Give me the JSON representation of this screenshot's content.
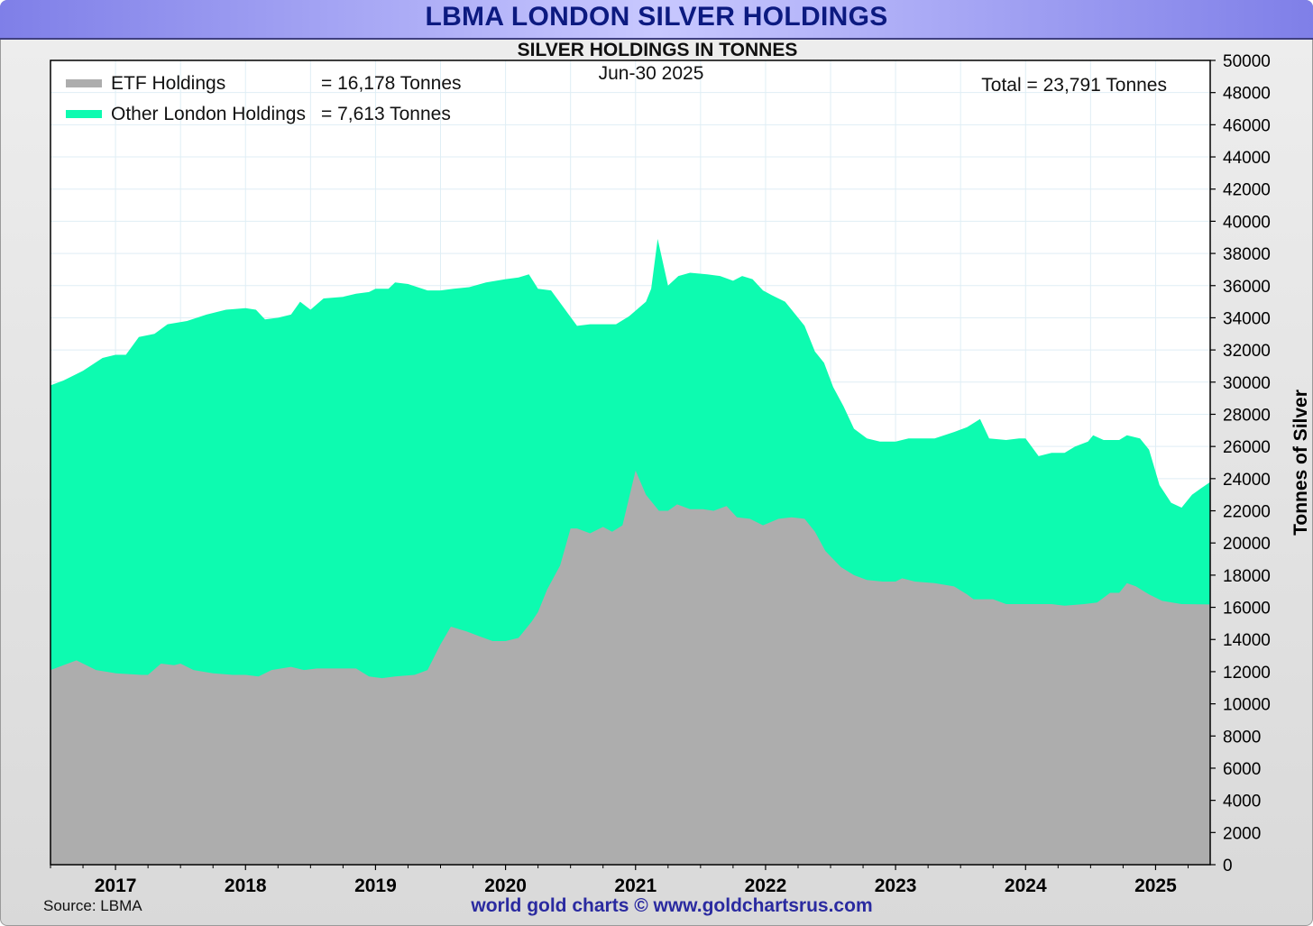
{
  "title": "LBMA LONDON SILVER HOLDINGS",
  "subtitle": "SILVER HOLDINGS IN TONNES",
  "date_label": "Jun-30  2025",
  "legend": {
    "etf_label": "ETF Holdings",
    "etf_value": "= 16,178 Tonnes",
    "other_label": "Other London Holdings",
    "other_value": "= 7,613 Tonnes",
    "total": "Total = 23,791 Tonnes"
  },
  "source": "Source: LBMA",
  "credit": "world gold charts © www.goldchartsrus.com",
  "colors": {
    "etf": "#adadad",
    "other": "#0dfbb0",
    "title": "#0c1a80",
    "credit": "#2a2aa0"
  },
  "chart_data": {
    "type": "area",
    "stacked": true,
    "title": "SILVER HOLDINGS IN TONNES",
    "ylabel": "Tonnes of Silver",
    "xlabel": "",
    "xlim": [
      2016.5,
      2025.42
    ],
    "ylim": [
      0,
      50000
    ],
    "y_tick_step": 2000,
    "x_ticks": [
      2017,
      2018,
      2019,
      2020,
      2021,
      2022,
      2023,
      2024,
      2025
    ],
    "grid": true,
    "series": [
      {
        "name": "ETF Holdings",
        "points": [
          [
            2016.5,
            12100
          ],
          [
            2016.6,
            12400
          ],
          [
            2016.7,
            12700
          ],
          [
            2016.85,
            12100
          ],
          [
            2017.0,
            11900
          ],
          [
            2017.2,
            11800
          ],
          [
            2017.25,
            11800
          ],
          [
            2017.35,
            12500
          ],
          [
            2017.45,
            12400
          ],
          [
            2017.5,
            12500
          ],
          [
            2017.6,
            12100
          ],
          [
            2017.75,
            11900
          ],
          [
            2017.9,
            11800
          ],
          [
            2018.0,
            11800
          ],
          [
            2018.1,
            11700
          ],
          [
            2018.2,
            12100
          ],
          [
            2018.35,
            12300
          ],
          [
            2018.45,
            12100
          ],
          [
            2018.55,
            12200
          ],
          [
            2018.7,
            12200
          ],
          [
            2018.85,
            12200
          ],
          [
            2018.95,
            11700
          ],
          [
            2019.05,
            11600
          ],
          [
            2019.15,
            11700
          ],
          [
            2019.3,
            11800
          ],
          [
            2019.4,
            12100
          ],
          [
            2019.5,
            13700
          ],
          [
            2019.58,
            14800
          ],
          [
            2019.7,
            14500
          ],
          [
            2019.8,
            14200
          ],
          [
            2019.9,
            13900
          ],
          [
            2020.0,
            13900
          ],
          [
            2020.1,
            14100
          ],
          [
            2020.2,
            15100
          ],
          [
            2020.25,
            15700
          ],
          [
            2020.32,
            17100
          ],
          [
            2020.42,
            18600
          ],
          [
            2020.5,
            20900
          ],
          [
            2020.55,
            20900
          ],
          [
            2020.65,
            20600
          ],
          [
            2020.75,
            21000
          ],
          [
            2020.82,
            20700
          ],
          [
            2020.9,
            21100
          ],
          [
            2021.0,
            24500
          ],
          [
            2021.08,
            23000
          ],
          [
            2021.18,
            22000
          ],
          [
            2021.25,
            22000
          ],
          [
            2021.32,
            22400
          ],
          [
            2021.42,
            22100
          ],
          [
            2021.52,
            22100
          ],
          [
            2021.6,
            22000
          ],
          [
            2021.7,
            22300
          ],
          [
            2021.78,
            21600
          ],
          [
            2021.88,
            21500
          ],
          [
            2021.98,
            21100
          ],
          [
            2022.1,
            21500
          ],
          [
            2022.2,
            21600
          ],
          [
            2022.3,
            21500
          ],
          [
            2022.38,
            20700
          ],
          [
            2022.46,
            19500
          ],
          [
            2022.58,
            18500
          ],
          [
            2022.68,
            18000
          ],
          [
            2022.78,
            17700
          ],
          [
            2022.9,
            17600
          ],
          [
            2023.0,
            17600
          ],
          [
            2023.05,
            17800
          ],
          [
            2023.15,
            17600
          ],
          [
            2023.3,
            17500
          ],
          [
            2023.45,
            17300
          ],
          [
            2023.55,
            16800
          ],
          [
            2023.6,
            16500
          ],
          [
            2023.75,
            16500
          ],
          [
            2023.85,
            16200
          ],
          [
            2024.0,
            16200
          ],
          [
            2024.2,
            16200
          ],
          [
            2024.3,
            16100
          ],
          [
            2024.45,
            16200
          ],
          [
            2024.55,
            16300
          ],
          [
            2024.65,
            16900
          ],
          [
            2024.72,
            16900
          ],
          [
            2024.78,
            17500
          ],
          [
            2024.85,
            17300
          ],
          [
            2024.95,
            16800
          ],
          [
            2025.05,
            16400
          ],
          [
            2025.2,
            16200
          ],
          [
            2025.42,
            16178
          ]
        ]
      },
      {
        "name": "Other London Holdings",
        "total_points": [
          [
            2016.5,
            29800
          ],
          [
            2016.6,
            30100
          ],
          [
            2016.75,
            30700
          ],
          [
            2016.9,
            31500
          ],
          [
            2017.0,
            31700
          ],
          [
            2017.08,
            31700
          ],
          [
            2017.18,
            32800
          ],
          [
            2017.3,
            33000
          ],
          [
            2017.4,
            33600
          ],
          [
            2017.55,
            33800
          ],
          [
            2017.7,
            34200
          ],
          [
            2017.85,
            34500
          ],
          [
            2018.0,
            34600
          ],
          [
            2018.08,
            34500
          ],
          [
            2018.15,
            33900
          ],
          [
            2018.25,
            34000
          ],
          [
            2018.35,
            34200
          ],
          [
            2018.42,
            35000
          ],
          [
            2018.5,
            34500
          ],
          [
            2018.6,
            35200
          ],
          [
            2018.75,
            35300
          ],
          [
            2018.85,
            35500
          ],
          [
            2018.95,
            35600
          ],
          [
            2019.0,
            35800
          ],
          [
            2019.1,
            35800
          ],
          [
            2019.15,
            36200
          ],
          [
            2019.25,
            36100
          ],
          [
            2019.4,
            35700
          ],
          [
            2019.5,
            35700
          ],
          [
            2019.6,
            35800
          ],
          [
            2019.72,
            35900
          ],
          [
            2019.85,
            36200
          ],
          [
            2020.0,
            36400
          ],
          [
            2020.1,
            36500
          ],
          [
            2020.18,
            36700
          ],
          [
            2020.25,
            35800
          ],
          [
            2020.35,
            35700
          ],
          [
            2020.45,
            34600
          ],
          [
            2020.55,
            33500
          ],
          [
            2020.65,
            33600
          ],
          [
            2020.75,
            33600
          ],
          [
            2020.85,
            33600
          ],
          [
            2020.95,
            34100
          ],
          [
            2021.08,
            35000
          ],
          [
            2021.12,
            35800
          ],
          [
            2021.17,
            38900
          ],
          [
            2021.25,
            36000
          ],
          [
            2021.33,
            36600
          ],
          [
            2021.42,
            36800
          ],
          [
            2021.55,
            36700
          ],
          [
            2021.65,
            36600
          ],
          [
            2021.75,
            36300
          ],
          [
            2021.82,
            36600
          ],
          [
            2021.9,
            36400
          ],
          [
            2021.98,
            35700
          ],
          [
            2022.05,
            35400
          ],
          [
            2022.15,
            35000
          ],
          [
            2022.25,
            34000
          ],
          [
            2022.3,
            33500
          ],
          [
            2022.38,
            31900
          ],
          [
            2022.45,
            31200
          ],
          [
            2022.52,
            29700
          ],
          [
            2022.6,
            28500
          ],
          [
            2022.68,
            27100
          ],
          [
            2022.78,
            26500
          ],
          [
            2022.88,
            26300
          ],
          [
            2023.0,
            26300
          ],
          [
            2023.1,
            26500
          ],
          [
            2023.3,
            26500
          ],
          [
            2023.45,
            26900
          ],
          [
            2023.55,
            27200
          ],
          [
            2023.65,
            27700
          ],
          [
            2023.72,
            26500
          ],
          [
            2023.85,
            26400
          ],
          [
            2023.95,
            26500
          ],
          [
            2024.0,
            26500
          ],
          [
            2024.1,
            25400
          ],
          [
            2024.2,
            25600
          ],
          [
            2024.3,
            25600
          ],
          [
            2024.38,
            26000
          ],
          [
            2024.48,
            26300
          ],
          [
            2024.52,
            26700
          ],
          [
            2024.6,
            26400
          ],
          [
            2024.72,
            26400
          ],
          [
            2024.78,
            26700
          ],
          [
            2024.88,
            26500
          ],
          [
            2024.95,
            25800
          ],
          [
            2025.03,
            23600
          ],
          [
            2025.12,
            22500
          ],
          [
            2025.2,
            22200
          ],
          [
            2025.28,
            23000
          ],
          [
            2025.35,
            23400
          ],
          [
            2025.42,
            23791
          ]
        ]
      }
    ]
  }
}
